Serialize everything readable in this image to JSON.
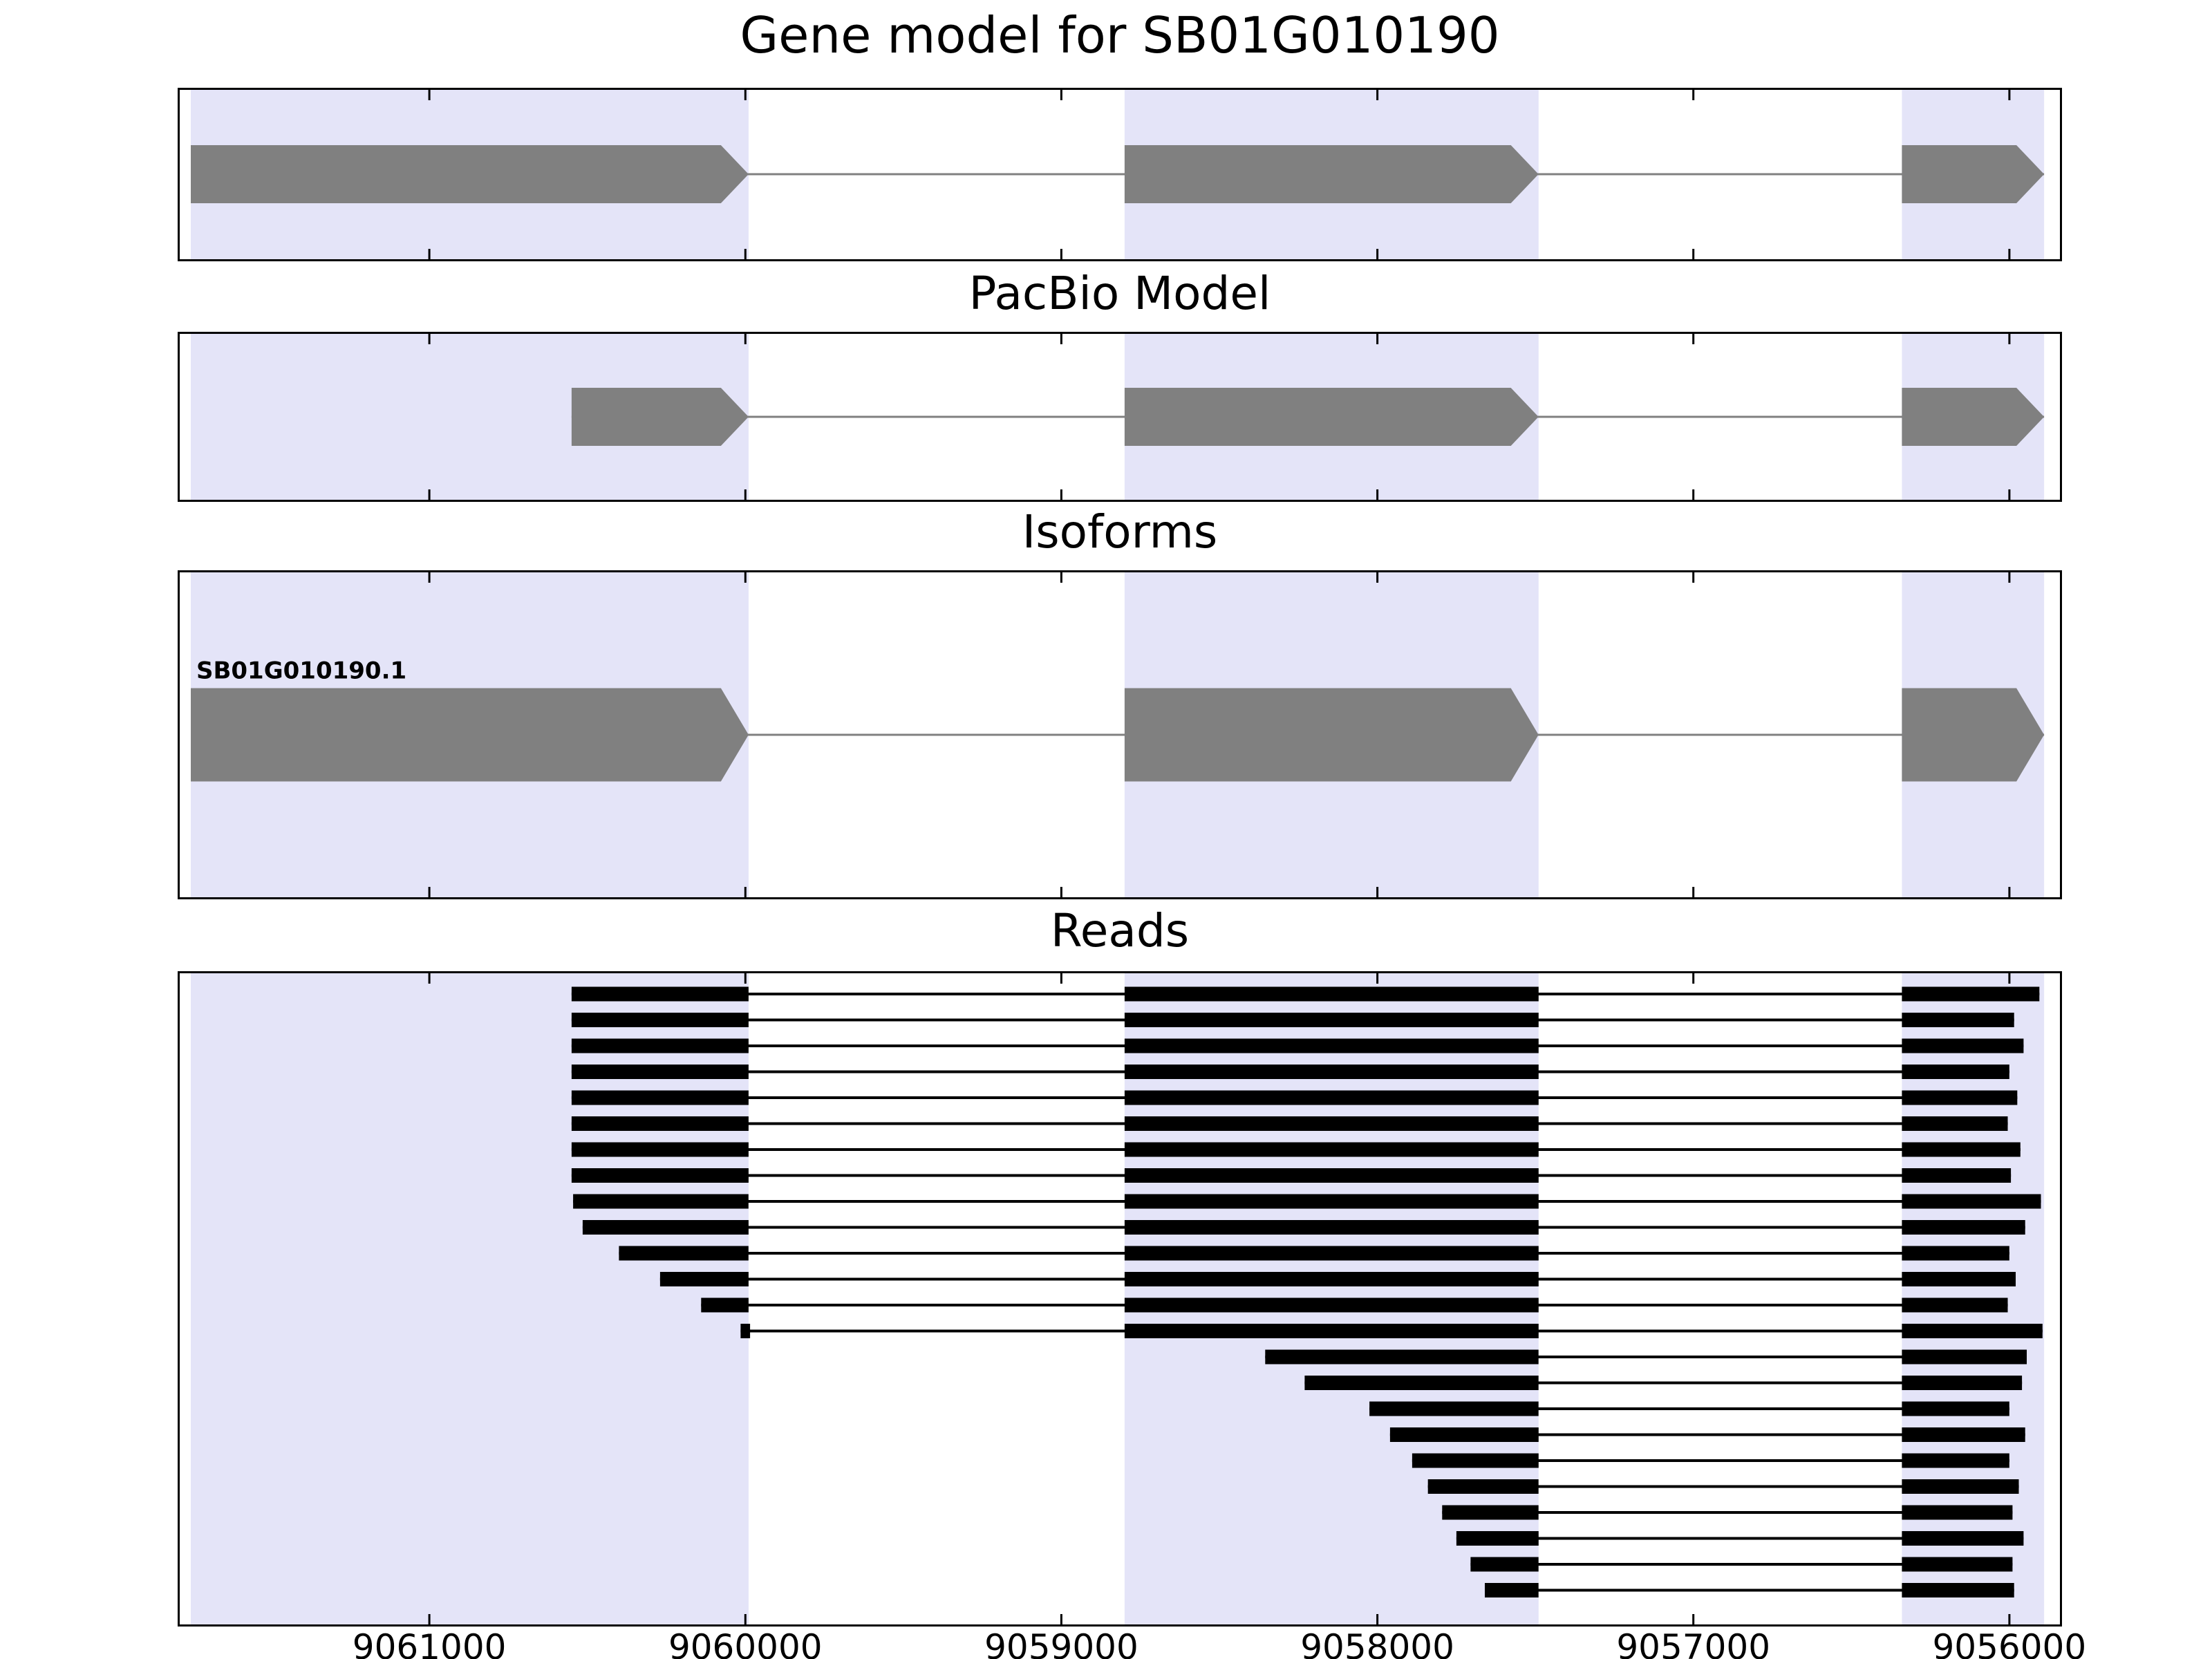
{
  "titles": {
    "main": "Gene model for SB01G010190",
    "pacbio": "PacBio Model",
    "isoforms": "Isoforms",
    "reads": "Reads"
  },
  "chart_data": {
    "type": "gene-model-browser",
    "title": "Gene model for SB01G010190",
    "panel_titles": [
      "Gene model for SB01G010190",
      "PacBio Model",
      "Isoforms",
      "Reads"
    ],
    "x_axis": {
      "min": 9061790,
      "max": 9055840,
      "reversed": true,
      "ticks": [
        9061000,
        9060000,
        9059000,
        9058000,
        9057000,
        9056000
      ]
    },
    "colors": {
      "shade": "#e4e4f8",
      "feature": "#808080",
      "read": "#000000",
      "frame": "#000000"
    },
    "shaded_exon_regions": [
      [
        9061755,
        9059990
      ],
      [
        9058800,
        9057490
      ],
      [
        9056340,
        9055890
      ]
    ],
    "gene_model": {
      "blocks": [
        [
          9061755,
          9059990
        ],
        [
          9058800,
          9057490
        ],
        [
          9056340,
          9055890
        ]
      ],
      "strand_arrow": "right"
    },
    "pacbio_model": {
      "blocks": [
        [
          9060550,
          9059990
        ],
        [
          9058800,
          9057490
        ],
        [
          9056340,
          9055890
        ]
      ],
      "strand_arrow": "right"
    },
    "isoforms": [
      {
        "name": "SB01G010190.1",
        "blocks": [
          [
            9061755,
            9059990
          ],
          [
            9058800,
            9057490
          ],
          [
            9056340,
            9055890
          ]
        ],
        "strand_arrow": "right"
      }
    ],
    "reads": [
      {
        "blocks": [
          [
            9060550,
            9059990
          ],
          [
            9058800,
            9057490
          ],
          [
            9056340,
            9055905
          ]
        ]
      },
      {
        "blocks": [
          [
            9060550,
            9059990
          ],
          [
            9058800,
            9057490
          ],
          [
            9056340,
            9055985
          ]
        ]
      },
      {
        "blocks": [
          [
            9060550,
            9059990
          ],
          [
            9058800,
            9057490
          ],
          [
            9056340,
            9055955
          ]
        ]
      },
      {
        "blocks": [
          [
            9060550,
            9059990
          ],
          [
            9058800,
            9057490
          ],
          [
            9056340,
            9056000
          ]
        ]
      },
      {
        "blocks": [
          [
            9060550,
            9059990
          ],
          [
            9058800,
            9057490
          ],
          [
            9056340,
            9055975
          ]
        ]
      },
      {
        "blocks": [
          [
            9060550,
            9059990
          ],
          [
            9058800,
            9057490
          ],
          [
            9056340,
            9056005
          ]
        ]
      },
      {
        "blocks": [
          [
            9060550,
            9059990
          ],
          [
            9058800,
            9057490
          ],
          [
            9056340,
            9055965
          ]
        ]
      },
      {
        "blocks": [
          [
            9060550,
            9059990
          ],
          [
            9058800,
            9057490
          ],
          [
            9056340,
            9055995
          ]
        ]
      },
      {
        "blocks": [
          [
            9060545,
            9059990
          ],
          [
            9058800,
            9057490
          ],
          [
            9056340,
            9055900
          ]
        ]
      },
      {
        "blocks": [
          [
            9060515,
            9059990
          ],
          [
            9058800,
            9057490
          ],
          [
            9056340,
            9055950
          ]
        ]
      },
      {
        "blocks": [
          [
            9060400,
            9059990
          ],
          [
            9058800,
            9057490
          ],
          [
            9056340,
            9056000
          ]
        ]
      },
      {
        "blocks": [
          [
            9060270,
            9059990
          ],
          [
            9058800,
            9057490
          ],
          [
            9056340,
            9055980
          ]
        ]
      },
      {
        "blocks": [
          [
            9060140,
            9059990
          ],
          [
            9058800,
            9057490
          ],
          [
            9056340,
            9056005
          ]
        ]
      },
      {
        "blocks": [
          [
            9060015,
            9059985
          ],
          [
            9058800,
            9057490
          ],
          [
            9056340,
            9055895
          ]
        ]
      },
      {
        "blocks": [
          [
            9058355,
            9057490
          ],
          [
            9056340,
            9055945
          ]
        ]
      },
      {
        "blocks": [
          [
            9058230,
            9057490
          ],
          [
            9056340,
            9055960
          ]
        ]
      },
      {
        "blocks": [
          [
            9058025,
            9057490
          ],
          [
            9056340,
            9056000
          ]
        ]
      },
      {
        "blocks": [
          [
            9057960,
            9057490
          ],
          [
            9056340,
            9055950
          ]
        ]
      },
      {
        "blocks": [
          [
            9057890,
            9057490
          ],
          [
            9056340,
            9056000
          ]
        ]
      },
      {
        "blocks": [
          [
            9057840,
            9057490
          ],
          [
            9056340,
            9055970
          ]
        ]
      },
      {
        "blocks": [
          [
            9057795,
            9057490
          ],
          [
            9056340,
            9055990
          ]
        ]
      },
      {
        "blocks": [
          [
            9057750,
            9057490
          ],
          [
            9056340,
            9055955
          ]
        ]
      },
      {
        "blocks": [
          [
            9057705,
            9057490
          ],
          [
            9056340,
            9055990
          ]
        ]
      },
      {
        "blocks": [
          [
            9057660,
            9057490
          ],
          [
            9056340,
            9055985
          ]
        ]
      }
    ]
  }
}
